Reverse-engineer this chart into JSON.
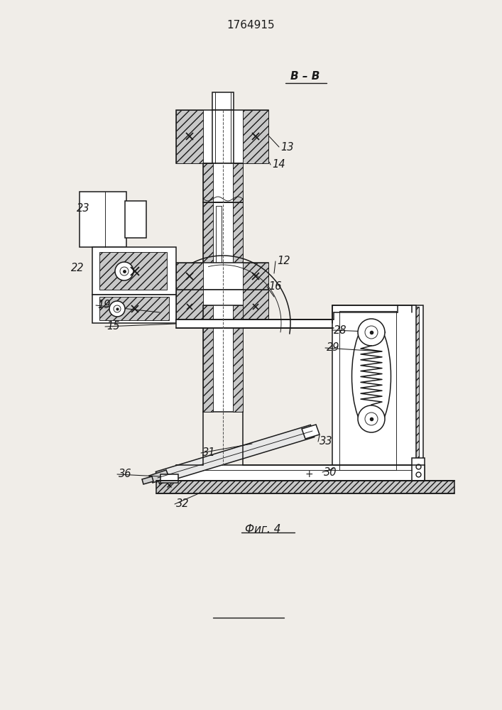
{
  "title": "1764915",
  "section_label": "B – B",
  "fig_label": "Фиг. 4",
  "bg_color": "#f0ede8",
  "line_color": "#1a1a1a"
}
